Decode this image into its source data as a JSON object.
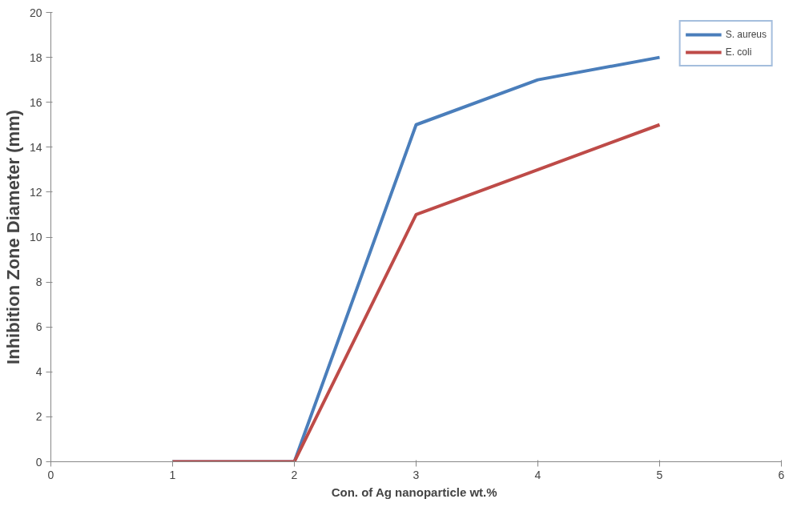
{
  "chart_data": {
    "type": "line",
    "xlabel": "Con. of Ag nanoparticle  wt.%",
    "ylabel": "Inhibition Zone Diameter (mm)",
    "x": [
      1,
      2,
      3,
      4,
      5
    ],
    "series": [
      {
        "name": "S. aureus",
        "color": "#4a7ebb",
        "values": [
          0,
          0,
          15,
          17,
          18
        ]
      },
      {
        "name": "E. coli",
        "color": "#be4b48",
        "values": [
          0,
          0,
          11,
          13,
          15
        ]
      }
    ],
    "xlim": [
      0,
      6
    ],
    "xticks": [
      0,
      1,
      2,
      3,
      4,
      5,
      6
    ],
    "ylim": [
      0,
      20
    ],
    "yticks": [
      0,
      2,
      4,
      6,
      8,
      10,
      12,
      14,
      16,
      18,
      20
    ],
    "grid": false,
    "legend": "top right",
    "marker": "none",
    "line_style": "solid"
  }
}
